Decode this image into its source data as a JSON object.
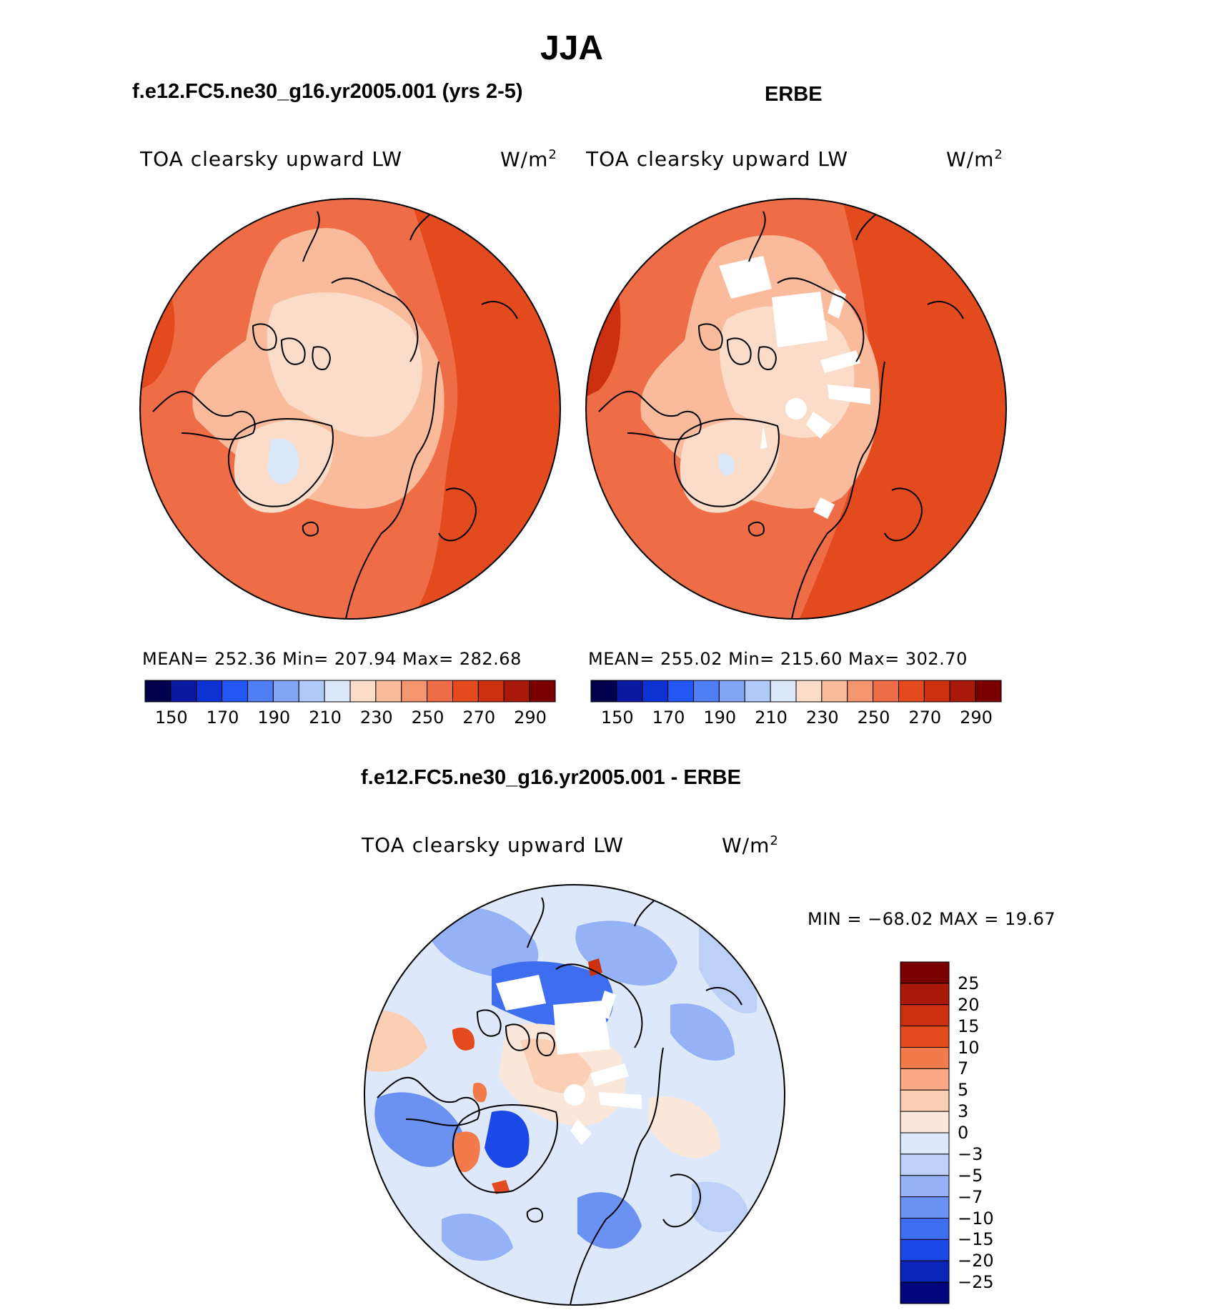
{
  "figure": {
    "season": "JJA"
  },
  "panels": [
    {
      "title": "f.e12.FC5.ne30_g16.yr2005.001 (yrs 2-5)",
      "variable": "TOA clearsky upward LW",
      "units": "W/m",
      "units_power": "2",
      "stats": "MEAN= 252.36   Min= 207.94   Max= 282.68",
      "colors": [
        "#00004c",
        "#0a1aa0",
        "#0c32d2",
        "#2357f5",
        "#4f7ef5",
        "#83a6f6",
        "#b1c9f7",
        "#dae8fa",
        "#fbdcc8",
        "#f9bb9c",
        "#f5956f",
        "#ee6c46",
        "#e34b1f",
        "#cc3010",
        "#a8190a",
        "#7a0000"
      ],
      "tick_labels": [
        "150",
        "170",
        "190",
        "210",
        "230",
        "250",
        "270",
        "290"
      ]
    },
    {
      "title": "ERBE",
      "variable": "TOA clearsky upward LW",
      "units": "W/m",
      "units_power": "2",
      "stats": "MEAN= 255.02   Min= 215.60   Max= 302.70",
      "colors": [
        "#00004c",
        "#0a1aa0",
        "#0c32d2",
        "#2357f5",
        "#4f7ef5",
        "#83a6f6",
        "#b1c9f7",
        "#dae8fa",
        "#fbdcc8",
        "#f9bb9c",
        "#f5956f",
        "#ee6c46",
        "#e34b1f",
        "#cc3010",
        "#a8190a",
        "#7a0000"
      ],
      "tick_labels": [
        "150",
        "170",
        "190",
        "210",
        "230",
        "250",
        "270",
        "290"
      ]
    }
  ],
  "diff": {
    "title": "f.e12.FC5.ne30_g16.yr2005.001 - ERBE",
    "variable": "TOA clearsky upward LW",
    "units": "W/m",
    "units_power": "2",
    "stats": "MIN =  −68.02  MAX =   19.67",
    "colors": [
      "#7a0000",
      "#a8190a",
      "#cc3010",
      "#e34b1f",
      "#f37a4a",
      "#f8a884",
      "#fbcfb4",
      "#fae7da",
      "#dde9fb",
      "#bcd0f8",
      "#95b2f6",
      "#6b91f3",
      "#3f6df0",
      "#1b48e6",
      "#0b25b8",
      "#00077a"
    ],
    "tick_labels": [
      "25",
      "20",
      "15",
      "10",
      "7",
      "5",
      "3",
      "0",
      "−3",
      "−5",
      "−7",
      "−10",
      "−15",
      "−20",
      "−25"
    ]
  }
}
